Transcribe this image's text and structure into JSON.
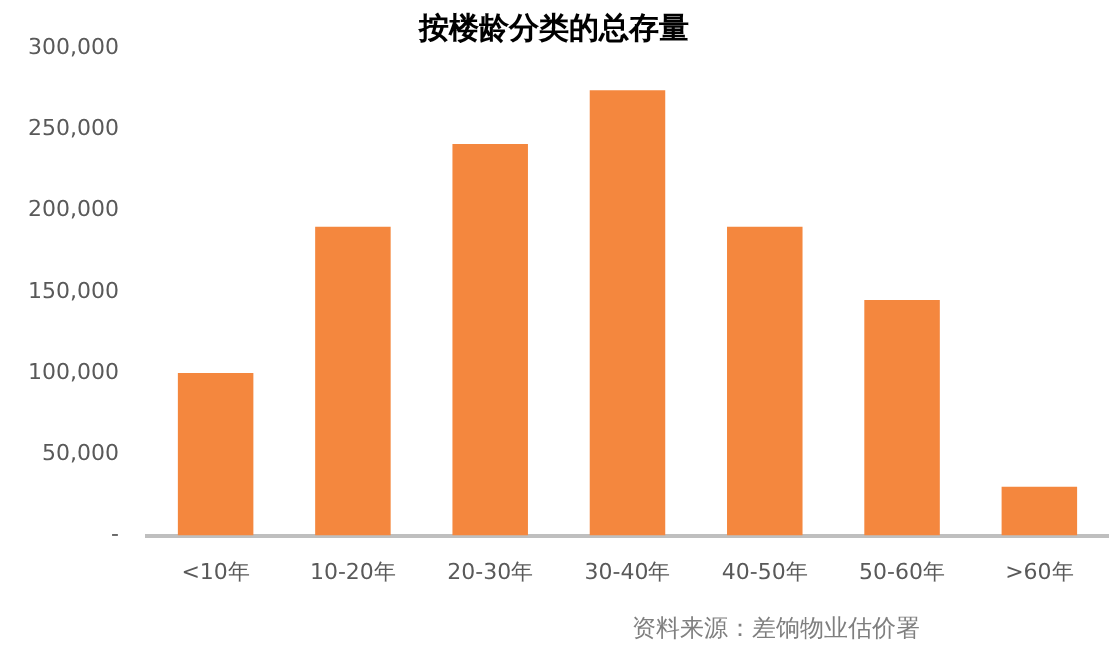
{
  "chart_data": {
    "type": "bar",
    "title": "按楼龄分类的总存量",
    "categories": [
      "<10年",
      "10-20年",
      "20-30年",
      "30-40年",
      "40-50年",
      "50-60年",
      ">60年"
    ],
    "values": [
      100000,
      190000,
      241000,
      274000,
      190000,
      145000,
      30000
    ],
    "color": "#f4873e",
    "ylim": [
      0,
      300000
    ],
    "yticks": [
      {
        "value": 0,
        "label": "-"
      },
      {
        "value": 50000,
        "label": "50,000"
      },
      {
        "value": 100000,
        "label": "100,000"
      },
      {
        "value": 150000,
        "label": "150,000"
      },
      {
        "value": 200000,
        "label": "200,000"
      },
      {
        "value": 250000,
        "label": "250,000"
      },
      {
        "value": 300000,
        "label": "300,000"
      }
    ],
    "grid": false,
    "legend": false,
    "annotations": [
      "资料来源：差饷物业估价署"
    ]
  }
}
